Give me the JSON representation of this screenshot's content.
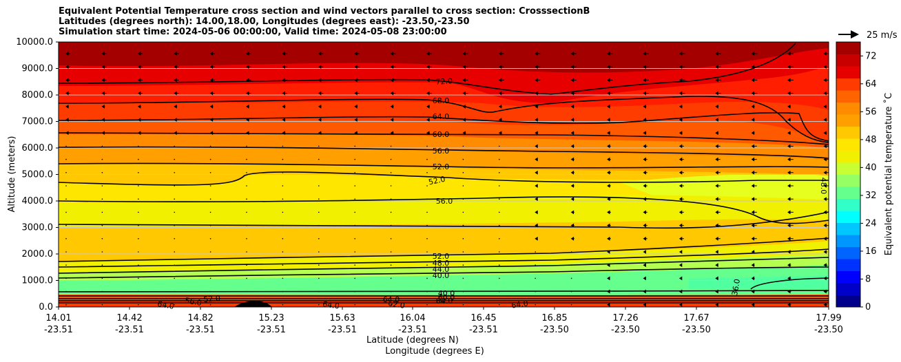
{
  "chart_data": {
    "type": "contour",
    "title_lines": [
      "Equivalent Potential Temperature cross section and wind vectors parallel to cross section: CrosssectionB",
      "Latitudes (degrees north): 14.00,18.00, Longitudes (degrees east): -23.50,-23.50",
      "Simulation start time: 2024-05-06 00:00:00, Valid time: 2024-05-08 23:00:00"
    ],
    "ylabel": "Altitude (meters)",
    "xlabel_1": "Latitude (degrees N)",
    "xlabel_2": "Longitude (degrees E)",
    "ylim": [
      0,
      10000
    ],
    "y_ticks": [
      "0.0",
      "1000.0",
      "2000.0",
      "3000.0",
      "4000.0",
      "5000.0",
      "6000.0",
      "7000.0",
      "8000.0",
      "9000.0",
      "10000.0"
    ],
    "x_ticks": [
      {
        "lat": "14.01",
        "lon": "-23.51"
      },
      {
        "lat": "14.42",
        "lon": "-23.51"
      },
      {
        "lat": "14.82",
        "lon": "-23.51"
      },
      {
        "lat": "15.23",
        "lon": "-23.51"
      },
      {
        "lat": "15.63",
        "lon": "-23.51"
      },
      {
        "lat": "16.04",
        "lon": "-23.51"
      },
      {
        "lat": "16.45",
        "lon": "-23.51"
      },
      {
        "lat": "16.85",
        "lon": "-23.50"
      },
      {
        "lat": "17.26",
        "lon": "-23.50"
      },
      {
        "lat": "17.67",
        "lon": "-23.50"
      },
      {
        "lat": "17.99",
        "lon": "-23.50"
      }
    ],
    "colorbar": {
      "label": "Equivalent potential temperature ˚C",
      "ticks": [
        "0",
        "8",
        "16",
        "24",
        "32",
        "40",
        "48",
        "56",
        "64",
        "72"
      ],
      "range": [
        0,
        76
      ]
    },
    "quiver_key": "25 m/s",
    "contour_labels": [
      "72.0",
      "68.0",
      "64.0",
      "60.0",
      "56.0",
      "52.0",
      "52.0",
      "56.0",
      "52.0",
      "48.0",
      "44.0",
      "40.0",
      "40.0",
      "64.0",
      "56.0",
      "52.0",
      "64.0",
      "62.0",
      "64.0",
      "60.0",
      "64.0",
      "48.0",
      "36.0",
      "64.0"
    ],
    "colors": {
      "dark_red": "#a50000",
      "red": "#e60000",
      "orange_red": "#ff3c00",
      "orange": "#ff8c00",
      "gold": "#ffc800",
      "yellow": "#f0f000",
      "green": "#64ff8c",
      "cyan": "#00ffff",
      "blue": "#0000ff",
      "navy": "#00008c"
    }
  }
}
